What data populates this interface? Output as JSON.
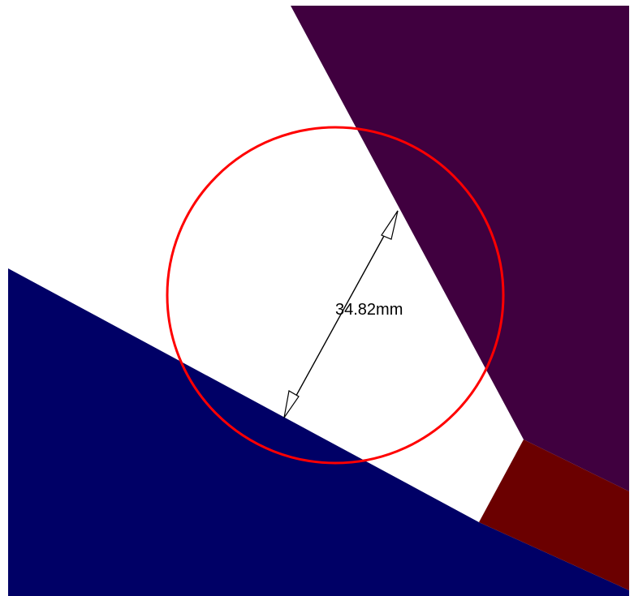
{
  "colors": {
    "background": "#ffffff",
    "upper_right_region": "#40003f",
    "lower_left_region": "#000066",
    "corner_block": "#6b0000",
    "circle": "#ff0000",
    "dimension_line": "#000000"
  },
  "dimension": {
    "label": "34.82mm"
  }
}
